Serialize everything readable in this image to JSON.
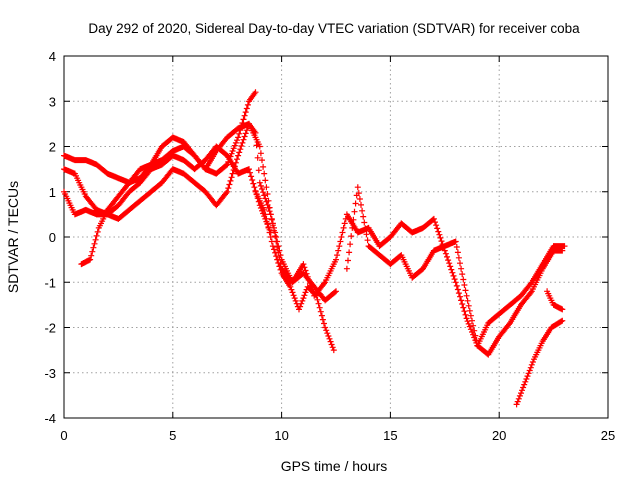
{
  "chart_data": {
    "type": "scatter",
    "title": "Day 292 of 2020, Sidereal Day-to-day VTEC variation (SDTVAR) for receiver coba",
    "xlabel": "GPS time / hours",
    "ylabel": "SDTVAR / TECUs",
    "xlim": [
      0,
      25
    ],
    "ylim": [
      -4,
      4
    ],
    "xticks": [
      "0",
      "5",
      "10",
      "15",
      "20",
      "25"
    ],
    "yticks": [
      "-4",
      "-3",
      "-2",
      "-1",
      "0",
      "1",
      "2",
      "3",
      "4"
    ],
    "grid": true,
    "marker": "+",
    "series_color": "#ff0000",
    "series": [
      {
        "x": [
          0,
          0.5,
          1,
          1.5,
          2,
          2.5,
          3,
          3.5,
          4,
          4.5,
          5,
          5.5,
          6,
          6.5,
          7,
          7.5,
          8,
          8.5,
          8.8,
          9,
          9.5,
          10,
          10.5,
          11,
          11.5,
          12,
          12.5,
          13,
          13.5,
          14,
          14.5,
          15,
          15.5,
          16,
          16.5,
          17,
          17.5,
          18,
          18.5,
          19,
          19.5,
          20,
          20.5,
          21,
          21.5,
          22,
          22.5,
          23
        ],
        "y": [
          1.8,
          1.7,
          1.7,
          1.6,
          1.4,
          1.3,
          1.2,
          1.3,
          1.6,
          2.0,
          2.2,
          2.1,
          1.8,
          1.5,
          1.9,
          2.2,
          2.4,
          2.5,
          2.3,
          1.2,
          0.5,
          -0.7,
          -1.0,
          -0.6,
          -1.3,
          -1.0,
          -0.5,
          0.5,
          0.1,
          0.2,
          -0.2,
          0.0,
          0.3,
          0.1,
          0.2,
          0.4,
          -0.3,
          -1.0,
          -1.8,
          -2.4,
          -1.9,
          -1.7,
          -1.5,
          -1.3,
          -1.0,
          -0.6,
          -0.2,
          -0.2
        ]
      },
      {
        "x": [
          0,
          0.5,
          1,
          1.5,
          2,
          2.5,
          3,
          3.5,
          4,
          4.5,
          5,
          5.5,
          6,
          6.5,
          7,
          7.5,
          8,
          8.5,
          9,
          9.5
        ],
        "y": [
          1.5,
          1.4,
          0.9,
          0.6,
          0.5,
          0.7,
          1.0,
          1.2,
          1.5,
          1.6,
          1.8,
          1.7,
          1.5,
          1.7,
          2.0,
          1.8,
          1.4,
          1.5,
          0.7,
          0.1
        ]
      },
      {
        "x": [
          0,
          0.5,
          1,
          1.5,
          2,
          2.5,
          3,
          3.5,
          4,
          4.5,
          5,
          5.5,
          6,
          6.5,
          7,
          7.5,
          8,
          8.5,
          9,
          9.5,
          10,
          10.5,
          11,
          11.5,
          12,
          12.5
        ],
        "y": [
          1.0,
          0.5,
          0.6,
          0.5,
          0.5,
          0.4,
          0.6,
          0.8,
          1.0,
          1.2,
          1.5,
          1.4,
          1.2,
          1.0,
          0.7,
          1.0,
          1.8,
          2.5,
          2.0,
          0.5,
          -0.5,
          -1.0,
          -0.8,
          -1.1,
          -1.4,
          -1.2
        ]
      },
      {
        "x": [
          0.8,
          1.2,
          1.6,
          2,
          2.5,
          3,
          3.5,
          4,
          4.5,
          5,
          5.5,
          6,
          6.5,
          7,
          7.5,
          8,
          8.5,
          8.8
        ],
        "y": [
          -0.6,
          -0.5,
          0.2,
          0.6,
          0.9,
          1.2,
          1.5,
          1.6,
          1.7,
          1.9,
          2.0,
          1.8,
          1.5,
          1.4,
          1.6,
          2.2,
          3.0,
          3.2
        ]
      },
      {
        "x": [
          8.8,
          9.2,
          9.6,
          10,
          10.4,
          10.8,
          11.2,
          11.6,
          12,
          12.4
        ],
        "y": [
          1.0,
          0.6,
          -0.2,
          -0.8,
          -1.1,
          -1.6,
          -1.1,
          -1.3,
          -2.0,
          -2.5
        ]
      },
      {
        "x": [
          13,
          13.5,
          14,
          14.5,
          15,
          15.5,
          16,
          16.5,
          17,
          17.5,
          18,
          18.5,
          19,
          19.5,
          20,
          20.5,
          21,
          21.5,
          22,
          22.5,
          22.9
        ],
        "y": [
          -0.7,
          1.1,
          -0.2,
          -0.4,
          -0.6,
          -0.4,
          -0.9,
          -0.7,
          -0.3,
          -0.2,
          -0.1,
          -1.3,
          -2.4,
          -2.6,
          -2.2,
          -1.9,
          -1.5,
          -1.2,
          -0.7,
          -0.3,
          -0.3
        ]
      },
      {
        "x": [
          20.8,
          21.2,
          21.6,
          22,
          22.4,
          22.9
        ],
        "y": [
          -3.7,
          -3.2,
          -2.7,
          -2.3,
          -2.0,
          -1.85
        ]
      },
      {
        "x": [
          22.2,
          22.5,
          22.9
        ],
        "y": [
          -1.2,
          -1.5,
          -1.6
        ]
      }
    ]
  }
}
